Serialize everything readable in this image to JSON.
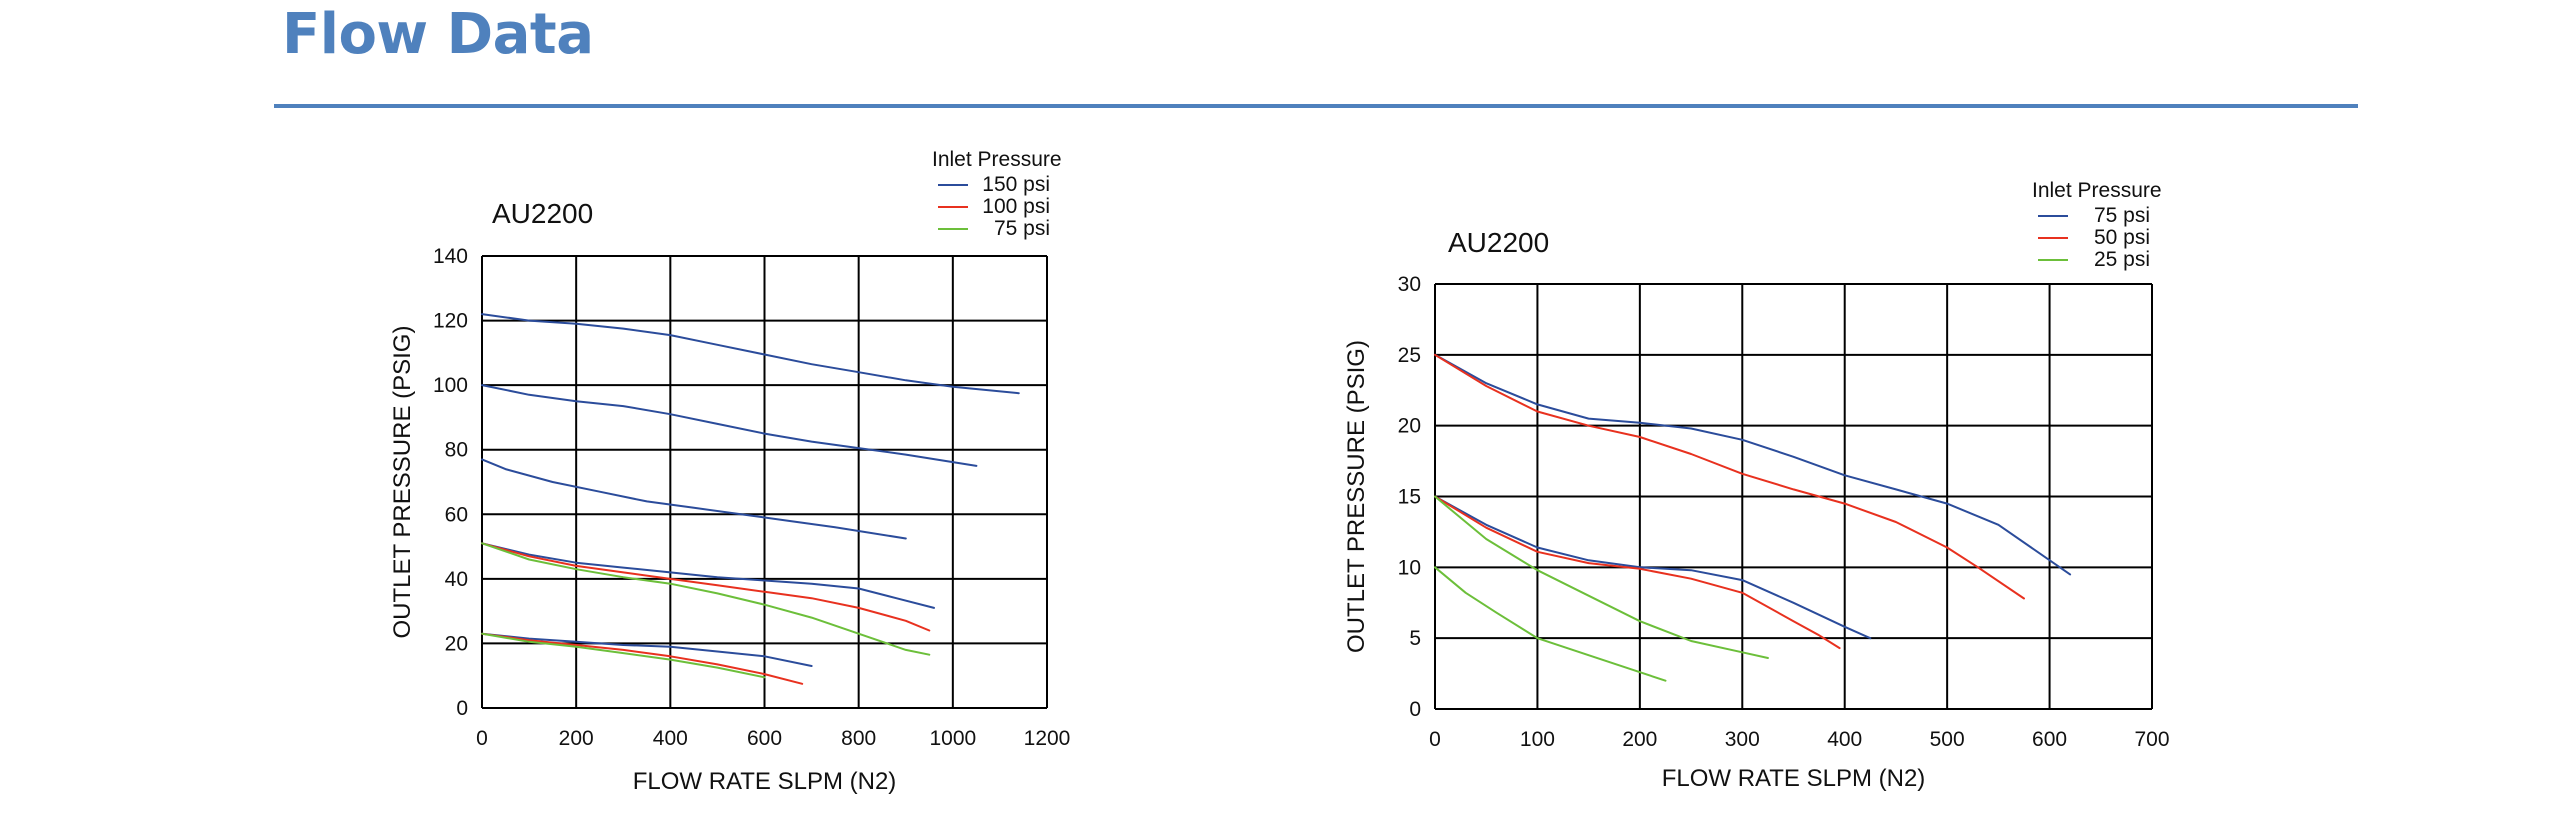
{
  "header": {
    "title": "Flow Data"
  },
  "chart_data": [
    {
      "type": "line",
      "title": "AU2200",
      "xlabel": "FLOW RATE SLPM (N2)",
      "ylabel": "OUTLET PRESSURE (PSIG)",
      "xlim": [
        0,
        1200
      ],
      "ylim": [
        0,
        140
      ],
      "xticks": [
        "0",
        "200",
        "400",
        "600",
        "800",
        "1000",
        "1200"
      ],
      "yticks": [
        "0",
        "20",
        "40",
        "60",
        "80",
        "100",
        "120",
        "140"
      ],
      "grid": true,
      "legend": {
        "title": "Inlet Pressure",
        "position": "top-right",
        "entries": [
          {
            "label": "150 psi",
            "color": "#2b4c9b"
          },
          {
            "label": "100 psi",
            "color": "#e8311f"
          },
          {
            "label": "75 psi",
            "color": "#6cbf3a"
          }
        ]
      },
      "series": [
        {
          "color": "#2b4c9b",
          "points": [
            [
              0,
              122
            ],
            [
              100,
              120
            ],
            [
              200,
              119
            ],
            [
              300,
              117.5
            ],
            [
              400,
              115.5
            ],
            [
              500,
              112.5
            ],
            [
              600,
              109.5
            ],
            [
              700,
              106.5
            ],
            [
              800,
              104
            ],
            [
              900,
              101.5
            ],
            [
              1000,
              99.5
            ],
            [
              1140,
              97.5
            ]
          ]
        },
        {
          "color": "#2b4c9b",
          "points": [
            [
              0,
              100
            ],
            [
              100,
              97
            ],
            [
              200,
              95
            ],
            [
              300,
              93.5
            ],
            [
              400,
              91
            ],
            [
              500,
              88
            ],
            [
              600,
              85
            ],
            [
              700,
              82.5
            ],
            [
              800,
              80.5
            ],
            [
              900,
              78.5
            ],
            [
              1050,
              75
            ]
          ]
        },
        {
          "color": "#2b4c9b",
          "points": [
            [
              0,
              77
            ],
            [
              50,
              74
            ],
            [
              150,
              70
            ],
            [
              250,
              67
            ],
            [
              350,
              64
            ],
            [
              450,
              62
            ],
            [
              550,
              60
            ],
            [
              650,
              58
            ],
            [
              750,
              56
            ],
            [
              900,
              52.5
            ]
          ]
        },
        {
          "color": "#2b4c9b",
          "points": [
            [
              0,
              51
            ],
            [
              100,
              47.5
            ],
            [
              200,
              45
            ],
            [
              300,
              43.5
            ],
            [
              400,
              42
            ],
            [
              500,
              40.5
            ],
            [
              600,
              39.5
            ],
            [
              700,
              38.5
            ],
            [
              800,
              37
            ],
            [
              880,
              34
            ],
            [
              960,
              31
            ]
          ]
        },
        {
          "color": "#e8311f",
          "points": [
            [
              0,
              51
            ],
            [
              100,
              47
            ],
            [
              200,
              44
            ],
            [
              300,
              42
            ],
            [
              400,
              40
            ],
            [
              500,
              38
            ],
            [
              600,
              36
            ],
            [
              700,
              34
            ],
            [
              800,
              31
            ],
            [
              900,
              27
            ],
            [
              950,
              24
            ]
          ]
        },
        {
          "color": "#6cbf3a",
          "points": [
            [
              0,
              51
            ],
            [
              100,
              46
            ],
            [
              200,
              43
            ],
            [
              300,
              40.5
            ],
            [
              400,
              38.5
            ],
            [
              500,
              35.5
            ],
            [
              600,
              32
            ],
            [
              700,
              28
            ],
            [
              800,
              23
            ],
            [
              900,
              18
            ],
            [
              950,
              16.5
            ]
          ]
        },
        {
          "color": "#2b4c9b",
          "points": [
            [
              0,
              23
            ],
            [
              100,
              21.5
            ],
            [
              200,
              20.5
            ],
            [
              300,
              19.5
            ],
            [
              400,
              19
            ],
            [
              500,
              17.5
            ],
            [
              600,
              16
            ],
            [
              700,
              13
            ]
          ]
        },
        {
          "color": "#e8311f",
          "points": [
            [
              0,
              23
            ],
            [
              100,
              21
            ],
            [
              200,
              19.5
            ],
            [
              300,
              18
            ],
            [
              400,
              16
            ],
            [
              500,
              13.5
            ],
            [
              600,
              10.5
            ],
            [
              680,
              7.5
            ]
          ]
        },
        {
          "color": "#6cbf3a",
          "points": [
            [
              0,
              23
            ],
            [
              100,
              20.5
            ],
            [
              200,
              19
            ],
            [
              300,
              17
            ],
            [
              400,
              15
            ],
            [
              500,
              12.5
            ],
            [
              600,
              9.5
            ]
          ]
        }
      ]
    },
    {
      "type": "line",
      "title": "AU2200",
      "xlabel": "FLOW RATE SLPM (N2)",
      "ylabel": "OUTLET PRESSURE (PSIG)",
      "xlim": [
        0,
        700
      ],
      "ylim": [
        0,
        30
      ],
      "xticks": [
        "0",
        "100",
        "200",
        "300",
        "400",
        "500",
        "600",
        "700"
      ],
      "yticks": [
        "0",
        "5",
        "10",
        "15",
        "20",
        "25",
        "30"
      ],
      "grid": true,
      "legend": {
        "title": "Inlet Pressure",
        "position": "top-right",
        "entries": [
          {
            "label": "75 psi",
            "color": "#2b4c9b"
          },
          {
            "label": "50 psi",
            "color": "#e8311f"
          },
          {
            "label": "25 psi",
            "color": "#6cbf3a"
          }
        ]
      },
      "series": [
        {
          "color": "#2b4c9b",
          "points": [
            [
              0,
              25
            ],
            [
              50,
              23
            ],
            [
              100,
              21.5
            ],
            [
              150,
              20.5
            ],
            [
              200,
              20.2
            ],
            [
              250,
              19.8
            ],
            [
              300,
              19
            ],
            [
              350,
              17.8
            ],
            [
              400,
              16.5
            ],
            [
              450,
              15.5
            ],
            [
              500,
              14.5
            ],
            [
              550,
              13
            ],
            [
              620,
              9.5
            ]
          ]
        },
        {
          "color": "#e8311f",
          "points": [
            [
              0,
              25
            ],
            [
              50,
              22.8
            ],
            [
              100,
              21
            ],
            [
              150,
              20
            ],
            [
              200,
              19.2
            ],
            [
              250,
              18
            ],
            [
              300,
              16.6
            ],
            [
              350,
              15.5
            ],
            [
              400,
              14.5
            ],
            [
              450,
              13.2
            ],
            [
              500,
              11.4
            ],
            [
              530,
              10
            ],
            [
              575,
              7.8
            ]
          ]
        },
        {
          "color": "#2b4c9b",
          "points": [
            [
              0,
              15
            ],
            [
              50,
              13
            ],
            [
              100,
              11.4
            ],
            [
              150,
              10.5
            ],
            [
              200,
              10
            ],
            [
              250,
              9.8
            ],
            [
              300,
              9.1
            ],
            [
              350,
              7.5
            ],
            [
              400,
              5.8
            ],
            [
              425,
              5
            ]
          ]
        },
        {
          "color": "#e8311f",
          "points": [
            [
              0,
              15
            ],
            [
              50,
              12.8
            ],
            [
              100,
              11.1
            ],
            [
              150,
              10.3
            ],
            [
              200,
              9.9
            ],
            [
              250,
              9.2
            ],
            [
              300,
              8.2
            ],
            [
              350,
              6.2
            ],
            [
              375,
              5.2
            ],
            [
              395,
              4.3
            ]
          ]
        },
        {
          "color": "#6cbf3a",
          "points": [
            [
              0,
              15
            ],
            [
              50,
              12
            ],
            [
              100,
              9.8
            ],
            [
              150,
              8
            ],
            [
              200,
              6.2
            ],
            [
              250,
              4.8
            ],
            [
              300,
              4
            ],
            [
              325,
              3.6
            ]
          ]
        },
        {
          "color": "#6cbf3a",
          "points": [
            [
              0,
              10
            ],
            [
              30,
              8.2
            ],
            [
              60,
              6.8
            ],
            [
              100,
              5
            ],
            [
              150,
              3.8
            ],
            [
              200,
              2.6
            ],
            [
              225,
              2
            ]
          ]
        }
      ]
    }
  ]
}
